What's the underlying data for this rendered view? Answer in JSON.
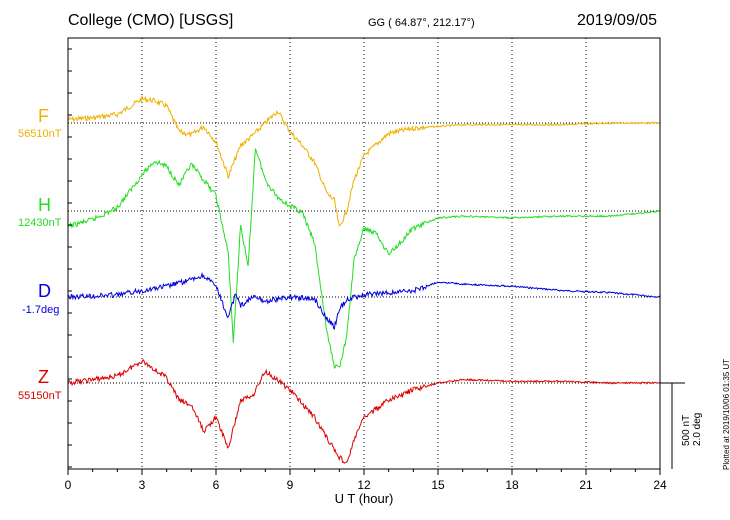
{
  "header": {
    "station": "College (CMO)  [USGS]",
    "coords": "GG ( 64.87°, 212.17°)",
    "date": "2019/09/05"
  },
  "scale": {
    "nt": "500 nT",
    "deg": "2.0 deg"
  },
  "plotted_note": "Plotted at 2019/10/06 01:35 UT",
  "chart_data": {
    "type": "line",
    "xlabel": "U T (hour)",
    "xlim": [
      0,
      24
    ],
    "xticks": [
      0,
      3,
      6,
      9,
      12,
      15,
      18,
      21,
      24
    ],
    "grid": true,
    "series": [
      {
        "name": "F",
        "baseline_label": "56510nT",
        "color": "#f0b000",
        "points": [
          [
            0,
            56530
          ],
          [
            1,
            56540
          ],
          [
            2,
            56560
          ],
          [
            3,
            56650
          ],
          [
            3.5,
            56640
          ],
          [
            4,
            56610
          ],
          [
            4.5,
            56460
          ],
          [
            5,
            56440
          ],
          [
            5.5,
            56490
          ],
          [
            6,
            56400
          ],
          [
            6.5,
            56200
          ],
          [
            7,
            56380
          ],
          [
            7.5,
            56440
          ],
          [
            8,
            56510
          ],
          [
            8.5,
            56580
          ],
          [
            9,
            56460
          ],
          [
            9.5,
            56380
          ],
          [
            10,
            56280
          ],
          [
            10.5,
            56100
          ],
          [
            10.8,
            56060
          ],
          [
            11,
            55900
          ],
          [
            11.3,
            56000
          ],
          [
            11.6,
            56180
          ],
          [
            12,
            56320
          ],
          [
            13,
            56450
          ],
          [
            14,
            56480
          ],
          [
            15,
            56490
          ],
          [
            16,
            56500
          ],
          [
            18,
            56500
          ],
          [
            20,
            56500
          ],
          [
            22,
            56510
          ],
          [
            24,
            56510
          ]
        ]
      },
      {
        "name": "H",
        "baseline_label": "12430nT",
        "color": "#22dd22",
        "points": [
          [
            0,
            12340
          ],
          [
            1,
            12380
          ],
          [
            2,
            12450
          ],
          [
            3,
            12640
          ],
          [
            3.5,
            12720
          ],
          [
            4,
            12690
          ],
          [
            4.5,
            12580
          ],
          [
            5,
            12700
          ],
          [
            5.5,
            12610
          ],
          [
            6,
            12520
          ],
          [
            6.5,
            12180
          ],
          [
            6.7,
            11670
          ],
          [
            7,
            12350
          ],
          [
            7.3,
            12100
          ],
          [
            7.6,
            12800
          ],
          [
            8,
            12610
          ],
          [
            8.5,
            12510
          ],
          [
            9,
            12460
          ],
          [
            9.5,
            12420
          ],
          [
            10,
            12240
          ],
          [
            10.5,
            11720
          ],
          [
            10.8,
            11530
          ],
          [
            11,
            11520
          ],
          [
            11.3,
            11700
          ],
          [
            11.6,
            12150
          ],
          [
            12,
            12330
          ],
          [
            12.5,
            12300
          ],
          [
            13,
            12180
          ],
          [
            13.5,
            12250
          ],
          [
            14,
            12330
          ],
          [
            15,
            12390
          ],
          [
            16,
            12400
          ],
          [
            18,
            12390
          ],
          [
            20,
            12400
          ],
          [
            22,
            12400
          ],
          [
            24,
            12430
          ]
        ]
      },
      {
        "name": "D",
        "baseline_label": "-1.7deg",
        "color": "#0000dd",
        "points": [
          [
            0,
            -1.7
          ],
          [
            2,
            -1.65
          ],
          [
            3,
            -1.55
          ],
          [
            4,
            -1.45
          ],
          [
            5,
            -1.3
          ],
          [
            5.5,
            -1.2
          ],
          [
            6,
            -1.45
          ],
          [
            6.5,
            -2.2
          ],
          [
            6.8,
            -1.6
          ],
          [
            7,
            -1.9
          ],
          [
            7.5,
            -1.7
          ],
          [
            8,
            -1.8
          ],
          [
            9,
            -1.7
          ],
          [
            10,
            -1.75
          ],
          [
            10.5,
            -2.2
          ],
          [
            10.8,
            -2.4
          ],
          [
            11,
            -2.0
          ],
          [
            11.3,
            -1.75
          ],
          [
            12,
            -1.65
          ],
          [
            14,
            -1.55
          ],
          [
            15,
            -1.35
          ],
          [
            16,
            -1.4
          ],
          [
            18,
            -1.45
          ],
          [
            20,
            -1.55
          ],
          [
            22,
            -1.6
          ],
          [
            24,
            -1.7
          ]
        ]
      },
      {
        "name": "Z",
        "baseline_label": "55150nT",
        "color": "#dd0000",
        "points": [
          [
            0,
            55150
          ],
          [
            2,
            55190
          ],
          [
            3,
            55280
          ],
          [
            4,
            55180
          ],
          [
            4.5,
            55050
          ],
          [
            5,
            55020
          ],
          [
            5.5,
            54870
          ],
          [
            6,
            54950
          ],
          [
            6.5,
            54770
          ],
          [
            7,
            55050
          ],
          [
            7.5,
            55080
          ],
          [
            8,
            55220
          ],
          [
            9,
            55110
          ],
          [
            9.5,
            55030
          ],
          [
            10,
            54950
          ],
          [
            10.5,
            54830
          ],
          [
            11,
            54720
          ],
          [
            11.3,
            54680
          ],
          [
            11.6,
            54820
          ],
          [
            12,
            54950
          ],
          [
            13,
            55050
          ],
          [
            14,
            55110
          ],
          [
            15,
            55150
          ],
          [
            16,
            55170
          ],
          [
            18,
            55160
          ],
          [
            20,
            55160
          ],
          [
            22,
            55150
          ],
          [
            24,
            55150
          ]
        ]
      }
    ]
  }
}
